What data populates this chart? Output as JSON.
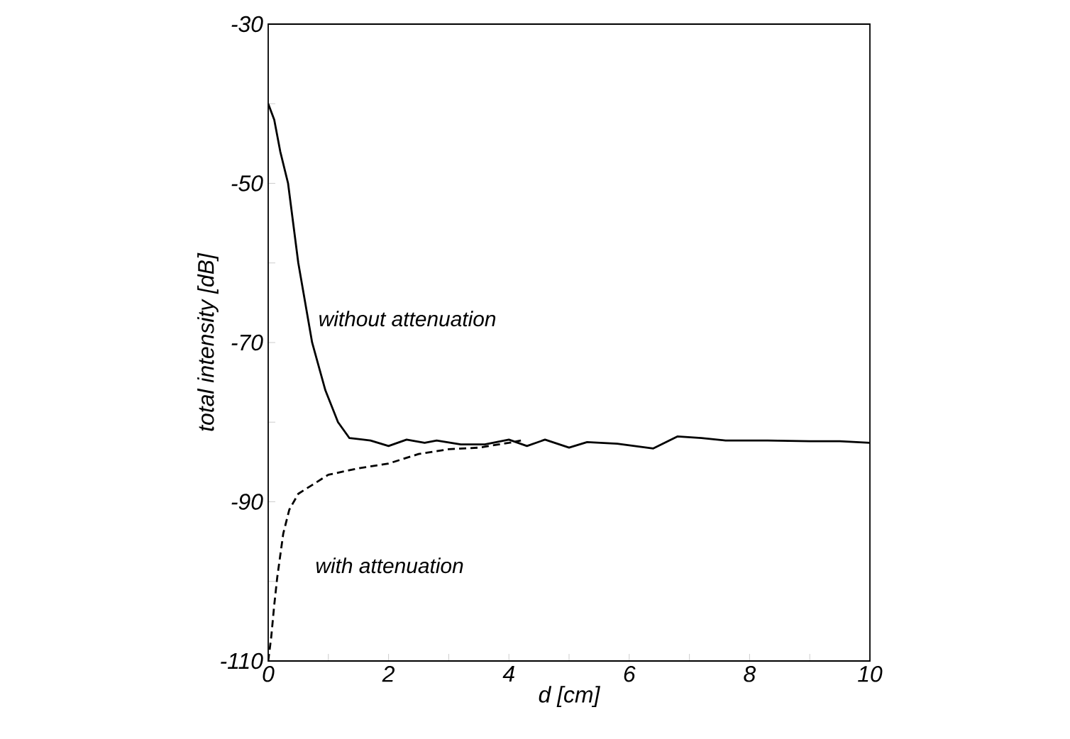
{
  "chart_data": {
    "type": "line",
    "xlabel": "d [cm]",
    "ylabel": "total intensity [dB]",
    "annotations": [
      "without attenuation",
      "with attenuation"
    ],
    "xlim": [
      0,
      10
    ],
    "ylim": [
      -110,
      -30
    ],
    "xticks": [
      0,
      {
        "value": 1,
        "label": null
      },
      2,
      {
        "value": 3,
        "label": null
      },
      4,
      {
        "value": 5,
        "label": null
      },
      6,
      {
        "value": 7,
        "label": null
      },
      8,
      {
        "value": 9,
        "label": null
      },
      10
    ],
    "yticks": [
      -110,
      {
        "value": -100,
        "label": null
      },
      -90,
      {
        "value": -80,
        "label": null
      },
      -70,
      {
        "value": -60,
        "label": null
      },
      -50,
      {
        "value": -40,
        "label": null
      },
      -30
    ],
    "grid": false,
    "series": [
      {
        "color": "#000000",
        "line_style": "solid",
        "x": [
          0,
          0.1,
          0.2,
          0.33,
          0.5,
          0.73,
          0.95,
          1.16,
          1.35,
          1.7,
          2.0,
          2.3,
          2.6,
          2.8,
          3.2,
          3.6,
          4.0,
          4.3,
          4.6,
          5.0,
          5.3,
          5.8,
          6.4,
          6.8,
          7.2,
          7.6,
          8.3,
          9.0,
          9.5,
          10
        ],
        "values": [
          -40,
          -42,
          -46,
          -50,
          -60,
          -70,
          -76,
          -80,
          -82,
          -82.3,
          -83,
          -82.2,
          -82.6,
          -82.3,
          -82.8,
          -82.8,
          -82.2,
          -83,
          -82.2,
          -83.2,
          -82.5,
          -82.7,
          -83.3,
          -81.8,
          -82,
          -82.3,
          -82.3,
          -82.4,
          -82.4,
          -82.6
        ]
      },
      {
        "color": "#000000",
        "line_style": "dashed",
        "x": [
          0,
          0.05,
          0.1,
          0.15,
          0.25,
          0.35,
          0.5,
          0.75,
          1.0,
          1.5,
          2.0,
          2.5,
          3.0,
          3.5,
          4.0,
          4.2
        ],
        "values": [
          -110,
          -107,
          -103,
          -99.5,
          -94,
          -91,
          -89,
          -87.8,
          -86.6,
          -85.8,
          -85.2,
          -84,
          -83.4,
          -83.2,
          -82.6,
          -82.3
        ]
      }
    ]
  }
}
